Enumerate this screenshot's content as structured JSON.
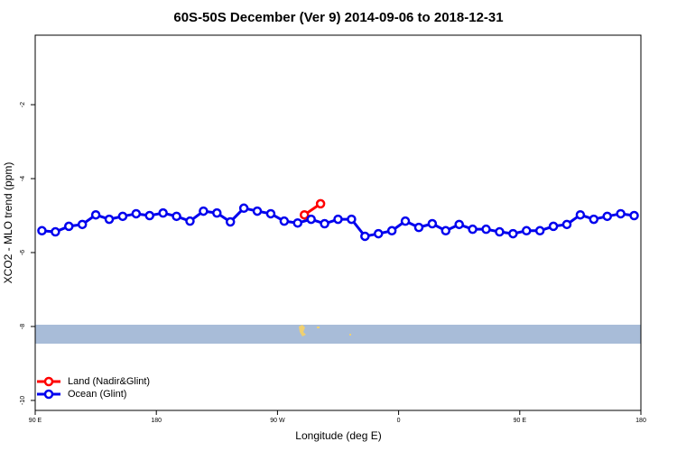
{
  "chart_data": {
    "type": "line",
    "title": "60S-50S December (Ver 9)   2014-09-06 to 2018-12-31",
    "x_label": "Longitude (deg E)",
    "y_label": "XCO2 - MLO trend (ppm)",
    "xlim": [
      90,
      540
    ],
    "xticks": [
      {
        "value": 90,
        "label": "90 E"
      },
      {
        "value": 180,
        "label": "180"
      },
      {
        "value": 270,
        "label": "90 W"
      },
      {
        "value": 360,
        "label": "0"
      },
      {
        "value": 450,
        "label": "90 E"
      },
      {
        "value": 540,
        "label": "180"
      }
    ],
    "ylim": [
      -10.27,
      -0.12
    ],
    "yticks": [
      -2,
      -4,
      -6,
      -8,
      -10
    ],
    "legend": "bottom-left",
    "series": [
      {
        "name": "Land (Nadir&Glint)",
        "color": "#ff0000",
        "x": [
          290,
          302
        ],
        "values": [
          -4.98,
          -4.68
        ]
      },
      {
        "name": "Ocean (Glint)",
        "color": "#0000ee",
        "x": [
          95,
          105,
          115,
          125,
          135,
          145,
          155,
          165,
          175,
          185,
          195,
          205,
          215,
          225,
          235,
          245,
          255,
          265,
          275,
          285,
          295,
          305,
          315,
          325,
          335,
          345,
          355,
          365,
          375,
          385,
          395,
          405,
          415,
          425,
          435,
          445,
          455,
          465,
          475,
          485,
          495,
          505,
          515,
          525,
          535
        ],
        "values": [
          -5.41,
          -5.44,
          -5.29,
          -5.24,
          -4.98,
          -5.1,
          -5.02,
          -4.95,
          -5.0,
          -4.93,
          -5.02,
          -5.15,
          -4.88,
          -4.93,
          -5.17,
          -4.8,
          -4.88,
          -4.95,
          -5.15,
          -5.2,
          -5.1,
          -5.22,
          -5.1,
          -5.1,
          -5.56,
          -5.49,
          -5.41,
          -5.15,
          -5.32,
          -5.22,
          -5.41,
          -5.24,
          -5.37,
          -5.37,
          -5.44,
          -5.49,
          -5.41,
          -5.41,
          -5.29,
          -5.24,
          -4.98,
          -5.1,
          -5.02,
          -4.95,
          -5.0
        ]
      }
    ]
  }
}
